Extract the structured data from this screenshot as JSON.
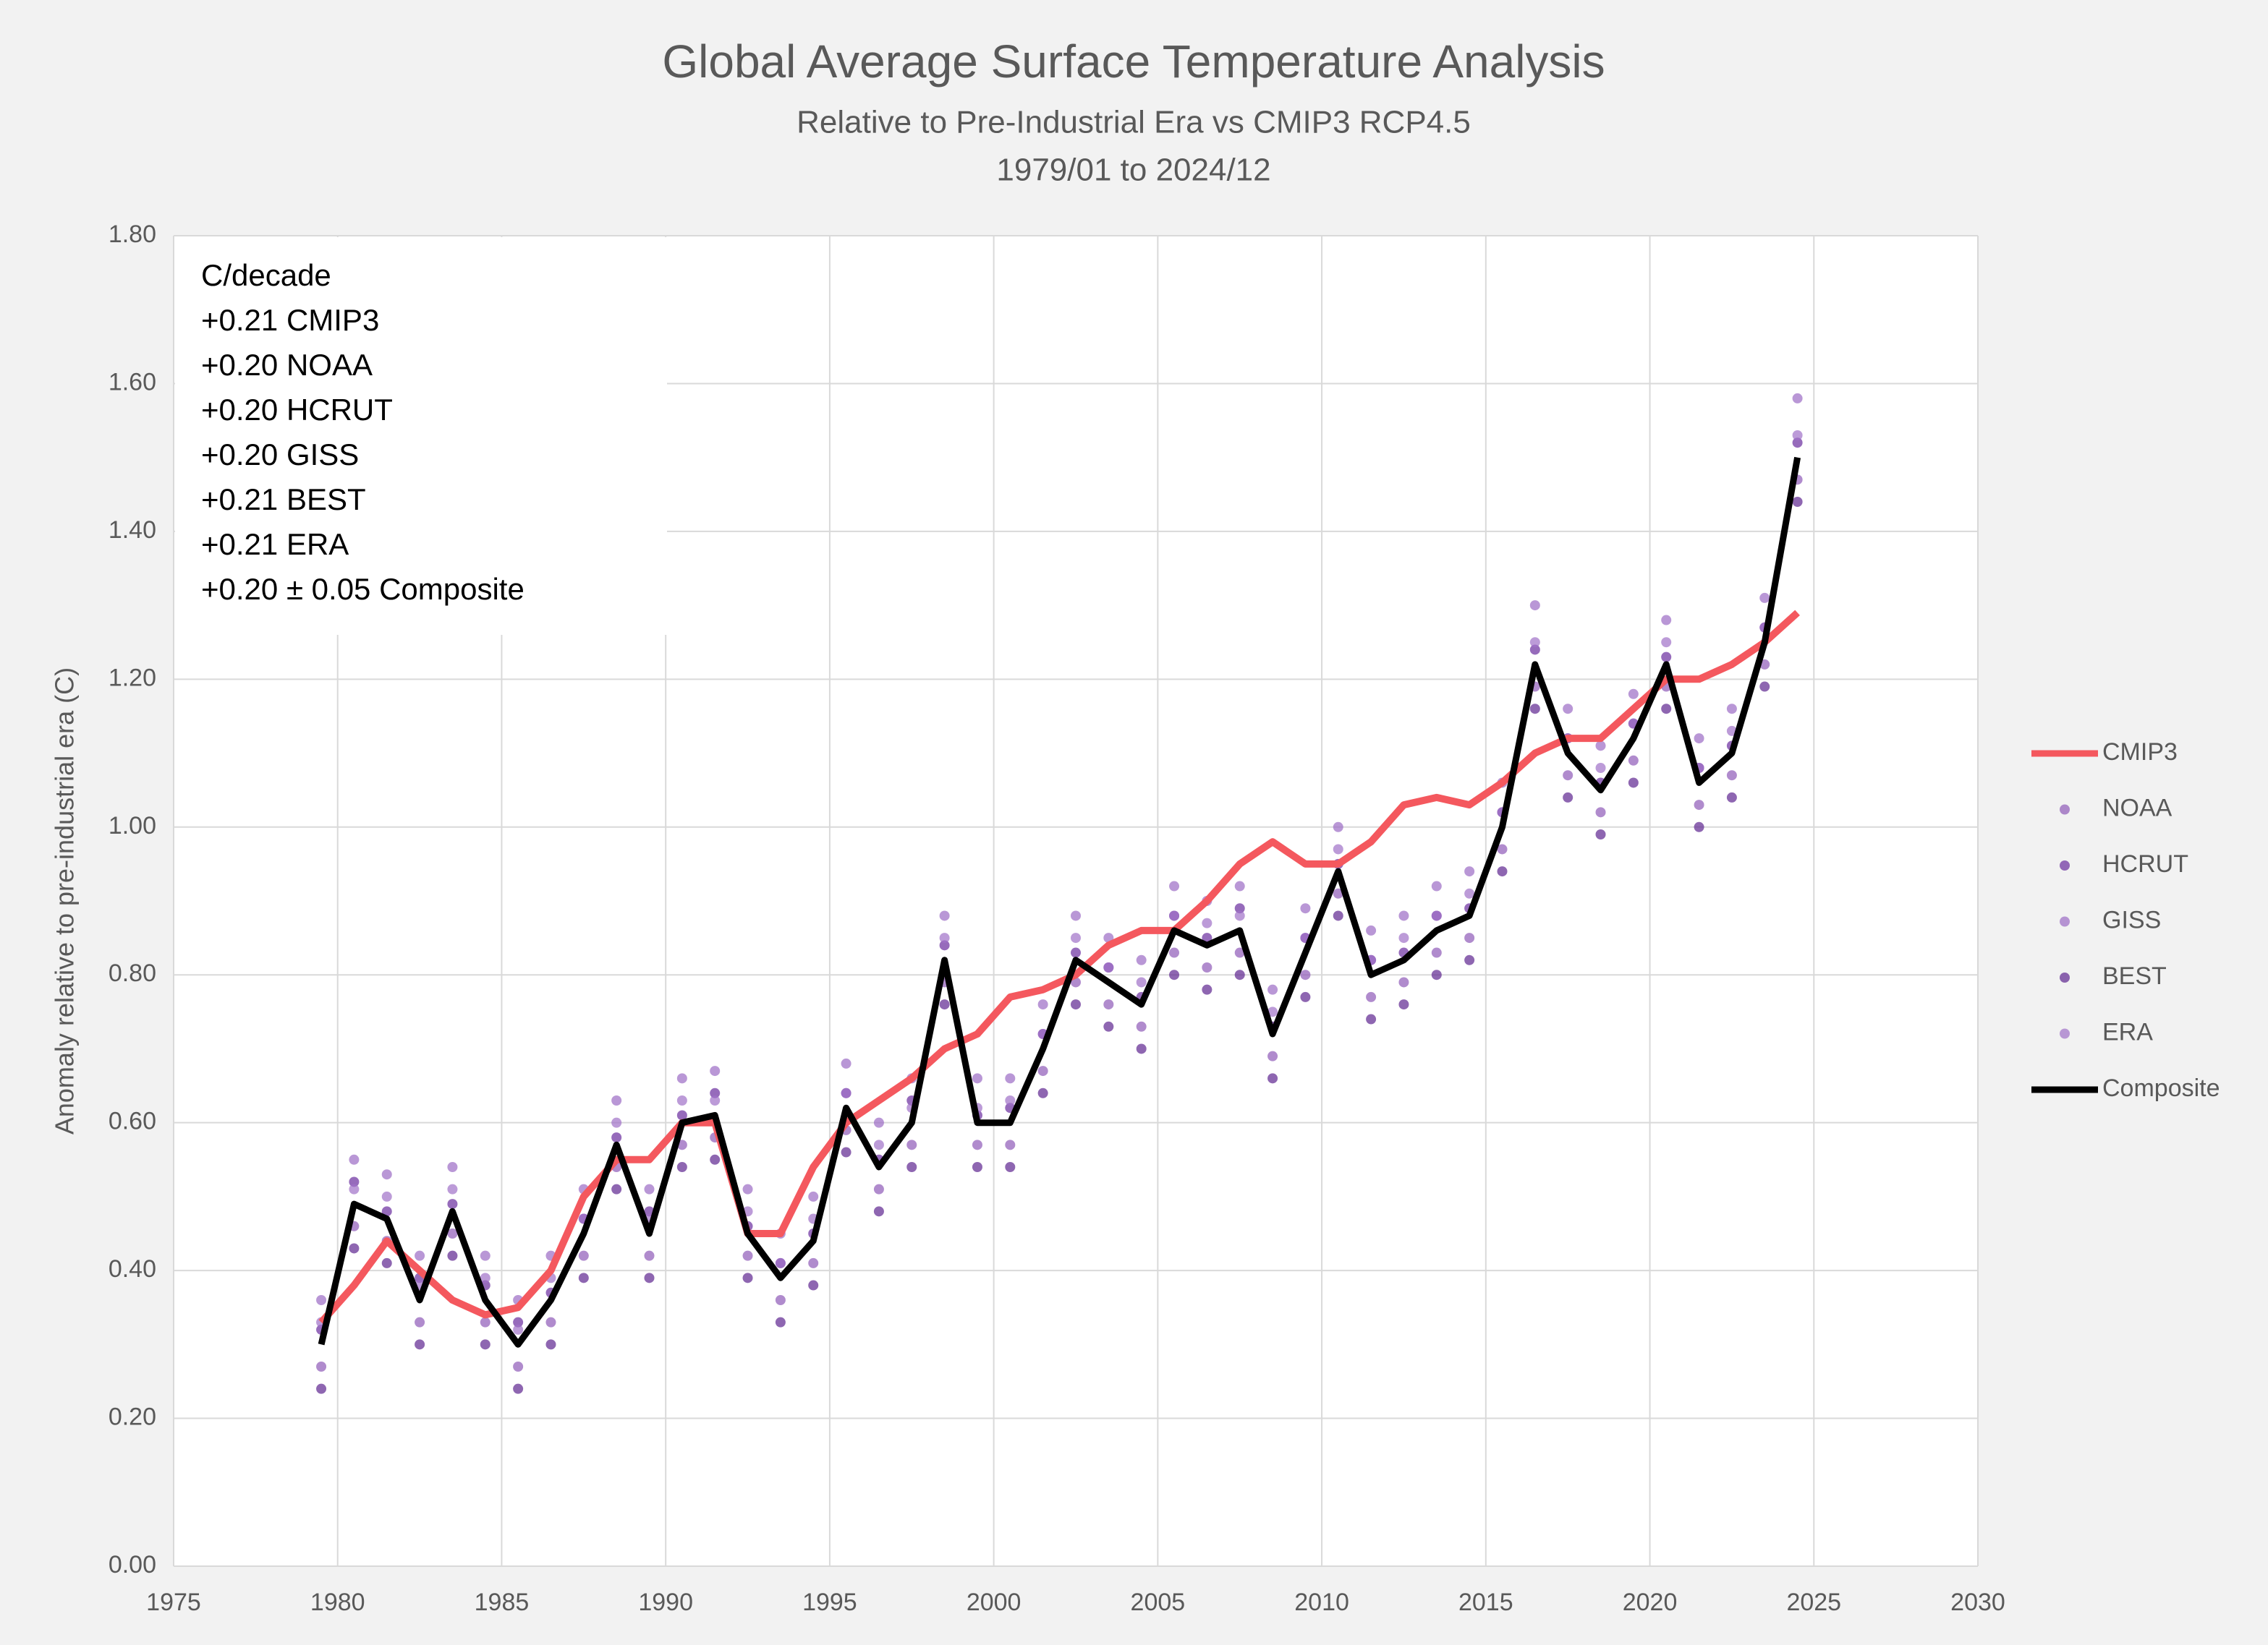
{
  "chart_data": {
    "type": "line",
    "title": "Global Average Surface Temperature Analysis",
    "subtitle": [
      "Relative to Pre-Industrial Era vs CMIP3 RCP4.5",
      "1979/01 to 2024/12"
    ],
    "y_label": "Anomaly relative to pre-industrial era (C)",
    "annotations": [
      "C/decade",
      "+0.21 CMIP3",
      "+0.20 NOAA",
      "+0.20 HCRUT",
      "+0.20 GISS",
      "+0.21 BEST",
      "+0.21 ERA",
      "+0.20 ± 0.05 Composite"
    ],
    "xlim": [
      1975,
      2030
    ],
    "xticks": [
      1975,
      1980,
      1985,
      1990,
      1995,
      2000,
      2005,
      2010,
      2015,
      2020,
      2025,
      2030
    ],
    "ylim": [
      0,
      1.8
    ],
    "yticks": [
      {
        "value": 0,
        "label": "0.00"
      },
      {
        "value": 0.2,
        "label": "0.20"
      },
      {
        "value": 0.4,
        "label": "0.40"
      },
      {
        "value": 0.6,
        "label": "0.60"
      },
      {
        "value": 0.8,
        "label": "0.80"
      },
      {
        "value": 1.0,
        "label": "1.00"
      },
      {
        "value": 1.2,
        "label": "1.20"
      },
      {
        "value": 1.4,
        "label": "1.40"
      },
      {
        "value": 1.6,
        "label": "1.60"
      },
      {
        "value": 1.8,
        "label": "1.80"
      }
    ],
    "grid": true,
    "legend": "right",
    "x": [
      1979.5,
      1980.5,
      1981.5,
      1982.5,
      1983.5,
      1984.5,
      1985.5,
      1986.5,
      1987.5,
      1988.5,
      1989.5,
      1990.5,
      1991.5,
      1992.5,
      1993.5,
      1994.5,
      1995.5,
      1996.5,
      1997.5,
      1998.5,
      1999.5,
      2000.5,
      2001.5,
      2002.5,
      2003.5,
      2004.5,
      2005.5,
      2006.5,
      2007.5,
      2008.5,
      2009.5,
      2010.5,
      2011.5,
      2012.5,
      2013.5,
      2014.5,
      2015.5,
      2016.5,
      2017.5,
      2018.5,
      2019.5,
      2020.5,
      2021.5,
      2022.5,
      2023.5,
      2024.5
    ],
    "series": [
      {
        "name": "CMIP3",
        "color": "#f4585e",
        "style": "line",
        "values": [
          0.33,
          0.38,
          0.44,
          0.4,
          0.36,
          0.34,
          0.35,
          0.4,
          0.5,
          0.55,
          0.55,
          0.6,
          0.6,
          0.45,
          0.45,
          0.54,
          0.6,
          0.63,
          0.66,
          0.7,
          0.72,
          0.77,
          0.78,
          0.8,
          0.84,
          0.86,
          0.86,
          0.9,
          0.95,
          0.98,
          0.95,
          0.95,
          0.98,
          1.03,
          1.04,
          1.03,
          1.06,
          1.1,
          1.12,
          1.12,
          1.16,
          1.2,
          1.2,
          1.22,
          1.25,
          1.29
        ]
      },
      {
        "name": "NOAA",
        "color": "#8e5ab8",
        "style": "markers",
        "values": [
          0.27,
          0.46,
          0.44,
          0.33,
          0.45,
          0.33,
          0.27,
          0.33,
          0.42,
          0.54,
          0.42,
          0.57,
          0.58,
          0.42,
          0.36,
          0.41,
          0.59,
          0.51,
          0.57,
          0.79,
          0.57,
          0.57,
          0.67,
          0.79,
          0.76,
          0.73,
          0.83,
          0.81,
          0.83,
          0.69,
          0.8,
          0.91,
          0.77,
          0.79,
          0.83,
          0.85,
          0.97,
          1.19,
          1.07,
          1.02,
          1.09,
          1.19,
          1.03,
          1.07,
          1.22,
          1.47
        ]
      },
      {
        "name": "HCRUT",
        "color": "#6a2c9e",
        "style": "markers",
        "values": [
          0.32,
          0.52,
          0.48,
          0.39,
          0.49,
          0.38,
          0.33,
          0.37,
          0.47,
          0.58,
          0.48,
          0.61,
          0.64,
          0.46,
          0.41,
          0.45,
          0.64,
          0.55,
          0.63,
          0.84,
          0.61,
          0.62,
          0.72,
          0.83,
          0.81,
          0.77,
          0.88,
          0.85,
          0.89,
          0.73,
          0.85,
          0.95,
          0.82,
          0.83,
          0.88,
          0.89,
          1.02,
          1.24,
          1.12,
          1.06,
          1.14,
          1.23,
          1.08,
          1.11,
          1.27,
          1.52
        ]
      },
      {
        "name": "GISS",
        "color": "#9b6bc4",
        "style": "markers",
        "values": [
          0.36,
          0.55,
          0.53,
          0.42,
          0.54,
          0.42,
          0.36,
          0.42,
          0.51,
          0.63,
          0.51,
          0.66,
          0.67,
          0.51,
          0.45,
          0.5,
          0.68,
          0.6,
          0.66,
          0.88,
          0.66,
          0.66,
          0.76,
          0.88,
          0.85,
          0.82,
          0.92,
          0.9,
          0.92,
          0.78,
          0.89,
          1.0,
          0.86,
          0.88,
          0.92,
          0.94,
          1.06,
          1.3,
          1.16,
          1.11,
          1.18,
          1.28,
          1.12,
          1.16,
          1.31,
          1.58
        ]
      },
      {
        "name": "BEST",
        "color": "#5e2590",
        "style": "markers",
        "values": [
          0.24,
          0.43,
          0.41,
          0.3,
          0.42,
          0.3,
          0.24,
          0.3,
          0.39,
          0.51,
          0.39,
          0.54,
          0.55,
          0.39,
          0.33,
          0.38,
          0.56,
          0.48,
          0.54,
          0.76,
          0.54,
          0.54,
          0.64,
          0.76,
          0.73,
          0.7,
          0.8,
          0.78,
          0.8,
          0.66,
          0.77,
          0.88,
          0.74,
          0.76,
          0.8,
          0.82,
          0.94,
          1.16,
          1.04,
          0.99,
          1.06,
          1.16,
          1.0,
          1.04,
          1.19,
          1.44
        ]
      },
      {
        "name": "ERA",
        "color": "#a070c8",
        "style": "markers",
        "values": [
          0.33,
          0.51,
          0.5,
          0.38,
          0.51,
          0.39,
          0.32,
          0.39,
          0.47,
          0.6,
          0.47,
          0.63,
          0.63,
          0.48,
          0.41,
          0.47,
          0.64,
          0.57,
          0.62,
          0.85,
          0.62,
          0.63,
          0.72,
          0.85,
          0.81,
          0.79,
          0.88,
          0.87,
          0.88,
          0.75,
          0.85,
          0.97,
          0.82,
          0.85,
          0.88,
          0.91,
          1.02,
          1.25,
          1.12,
          1.08,
          1.14,
          1.25,
          1.08,
          1.13,
          1.27,
          1.53
        ]
      },
      {
        "name": "Composite",
        "color": "#000000",
        "style": "line",
        "values": [
          0.3,
          0.49,
          0.47,
          0.36,
          0.48,
          0.36,
          0.3,
          0.36,
          0.45,
          0.57,
          0.45,
          0.6,
          0.61,
          0.45,
          0.39,
          0.44,
          0.62,
          0.54,
          0.6,
          0.82,
          0.6,
          0.6,
          0.7,
          0.82,
          0.79,
          0.76,
          0.86,
          0.84,
          0.86,
          0.72,
          0.83,
          0.94,
          0.8,
          0.82,
          0.86,
          0.88,
          1.0,
          1.22,
          1.1,
          1.05,
          1.12,
          1.22,
          1.06,
          1.1,
          1.25,
          1.5
        ]
      }
    ]
  }
}
